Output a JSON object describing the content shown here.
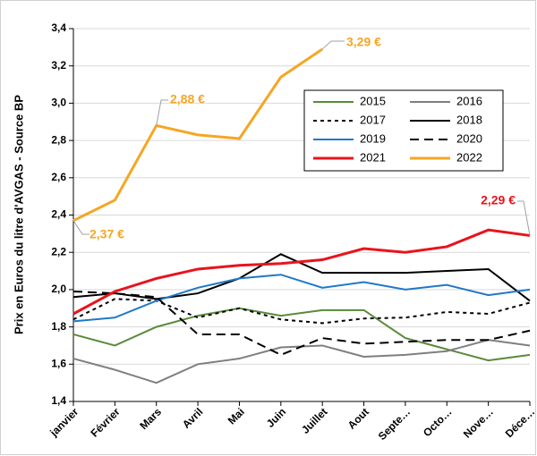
{
  "chart_data": {
    "type": "line",
    "y_label": "Prix en Euros du litre d'AVGAS - Source BP",
    "categories": [
      "janvier",
      "Février",
      "Mars",
      "Avril",
      "Mai",
      "Juin",
      "Juillet",
      "Aout",
      "Septe…",
      "Octo…",
      "Nove…",
      "Déce…"
    ],
    "series": [
      {
        "name": "2015",
        "color": "#5a8a3a",
        "style": "solid",
        "values": [
          1.76,
          1.7,
          1.8,
          1.86,
          1.9,
          1.86,
          1.89,
          1.89,
          1.74,
          1.68,
          1.62,
          1.65
        ]
      },
      {
        "name": "2016",
        "color": "#7f7f7f",
        "style": "solid",
        "values": [
          1.63,
          1.57,
          1.5,
          1.6,
          1.63,
          1.69,
          1.7,
          1.64,
          1.65,
          1.67,
          1.73,
          1.7
        ]
      },
      {
        "name": "2017",
        "color": "#000000",
        "style": "dotted",
        "values": [
          1.84,
          1.95,
          1.94,
          1.85,
          1.9,
          1.84,
          1.82,
          1.845,
          1.85,
          1.88,
          1.87,
          1.93
        ]
      },
      {
        "name": "2018",
        "color": "#000000",
        "style": "solid",
        "values": [
          1.96,
          1.98,
          1.95,
          1.98,
          2.06,
          2.19,
          2.09,
          2.09,
          2.09,
          2.1,
          2.11,
          1.94
        ]
      },
      {
        "name": "2019",
        "color": "#1f78c8",
        "style": "solid",
        "values": [
          1.83,
          1.85,
          1.94,
          2.01,
          2.06,
          2.08,
          2.01,
          2.04,
          2.0,
          2.025,
          1.97,
          2.0
        ]
      },
      {
        "name": "2020",
        "color": "#000000",
        "style": "dashed",
        "values": [
          1.99,
          1.98,
          1.96,
          1.76,
          1.76,
          1.65,
          1.74,
          1.71,
          1.72,
          1.73,
          1.73,
          1.78
        ]
      },
      {
        "name": "2021",
        "color": "#e8141c",
        "style": "solid",
        "values": [
          1.87,
          1.99,
          2.06,
          2.11,
          2.13,
          2.14,
          2.16,
          2.22,
          2.2,
          2.23,
          2.32,
          2.29
        ]
      },
      {
        "name": "2022",
        "color": "#f5a623",
        "style": "solid",
        "values": [
          2.37,
          2.48,
          2.88,
          2.83,
          2.81,
          3.14,
          3.29,
          null,
          null,
          null,
          null,
          null
        ]
      }
    ],
    "annotations": [
      {
        "text": "2,37 €",
        "color": "#f5a623"
      },
      {
        "text": "2,88 €",
        "color": "#f5a623"
      },
      {
        "text": "3,29 €",
        "color": "#f5a623"
      },
      {
        "text": "2,29 €",
        "color": "#e8141c"
      }
    ],
    "ylim": [
      1.4,
      3.4
    ],
    "yticks": [
      {
        "value": 1.4,
        "label": "1,4"
      },
      {
        "value": 1.6,
        "label": "1,6"
      },
      {
        "value": 1.8,
        "label": "1,8"
      },
      {
        "value": 2.0,
        "label": "2,0"
      },
      {
        "value": 2.2,
        "label": "2,2"
      },
      {
        "value": 2.4,
        "label": "2,4"
      },
      {
        "value": 2.6,
        "label": "2,6"
      },
      {
        "value": 2.8,
        "label": "2,8"
      },
      {
        "value": 3.0,
        "label": "3,0"
      },
      {
        "value": 3.2,
        "label": "3,2"
      },
      {
        "value": 3.4,
        "label": "3,4"
      }
    ],
    "grid": true
  }
}
